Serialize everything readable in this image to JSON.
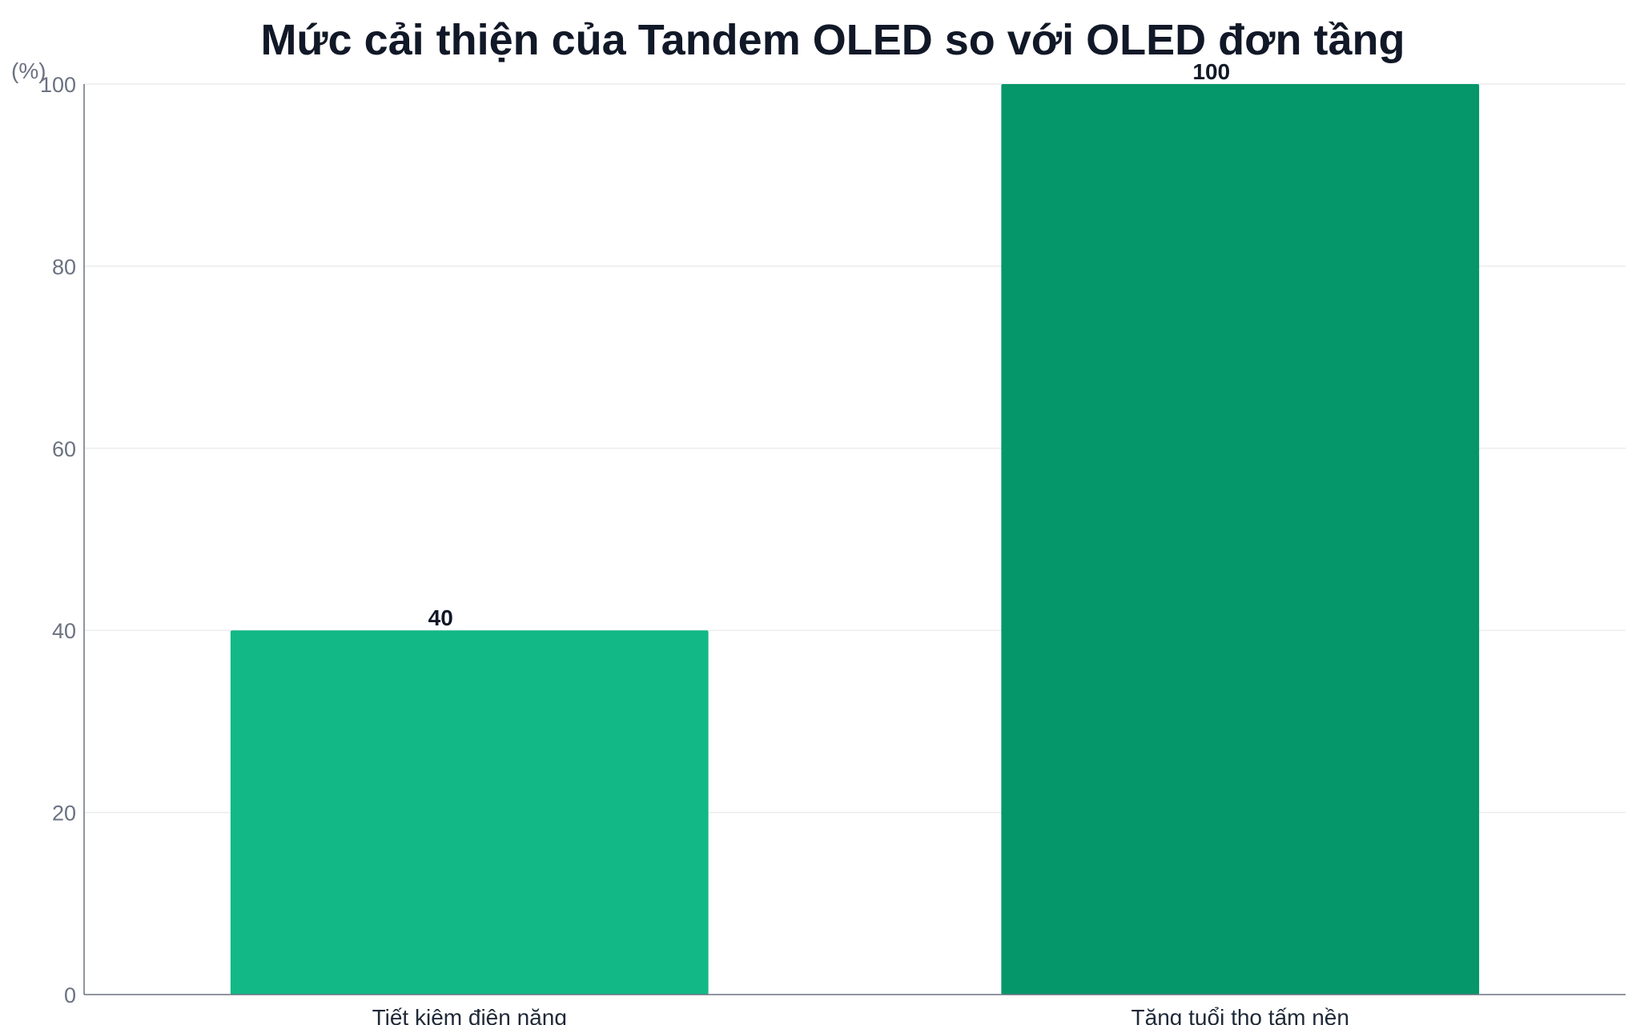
{
  "chart_data": {
    "type": "bar",
    "title": "Mức cải thiện của Tandem OLED so với OLED đơn tầng",
    "ylabel": "(%)",
    "xlabel": "",
    "categories": [
      "Tiết kiệm điện năng",
      "Tăng tuổi thọ tấm nền"
    ],
    "values": [
      40,
      100
    ],
    "value_labels": [
      "40",
      "100"
    ],
    "bar_colors": [
      "#12b886",
      "#05966a"
    ],
    "ylim": [
      0,
      100
    ],
    "yticks": [
      0,
      20,
      40,
      60,
      80,
      100
    ],
    "ytick_labels": [
      "0",
      "20",
      "40",
      "60",
      "80",
      "100"
    ],
    "grid": true,
    "legend": "none"
  },
  "colors": {
    "grid": "#ececec",
    "axis": "#6b7280"
  }
}
